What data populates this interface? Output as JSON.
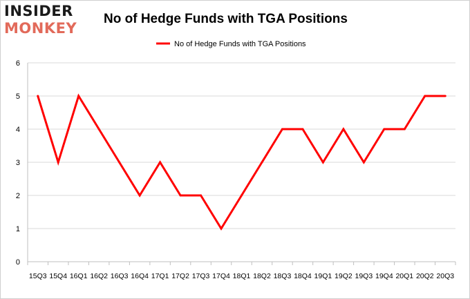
{
  "logo": {
    "line1": "INSIDER",
    "line2": "MONKEY"
  },
  "chart_data": {
    "type": "line",
    "title": "No of Hedge Funds with TGA Positions",
    "xlabel": "",
    "ylabel": "",
    "categories": [
      "15Q3",
      "15Q4",
      "16Q1",
      "16Q2",
      "16Q3",
      "16Q4",
      "17Q1",
      "17Q2",
      "17Q3",
      "17Q4",
      "18Q1",
      "18Q2",
      "18Q3",
      "18Q4",
      "19Q1",
      "19Q2",
      "19Q3",
      "19Q4",
      "20Q1",
      "20Q2",
      "20Q3"
    ],
    "series": [
      {
        "name": "No of Hedge Funds with TGA Positions",
        "values": [
          5,
          3,
          5,
          4,
          3,
          2,
          3,
          2,
          2,
          1,
          2,
          3,
          4,
          4,
          3,
          4,
          3,
          4,
          4,
          5,
          5
        ]
      }
    ],
    "ylim": [
      0,
      6
    ],
    "yticks": [
      0,
      1,
      2,
      3,
      4,
      5,
      6
    ],
    "grid": true,
    "legend": "top-center",
    "colors": {
      "series": "#ff0000",
      "grid": "#d9d9d9",
      "axis": "#bfbfbf"
    }
  }
}
